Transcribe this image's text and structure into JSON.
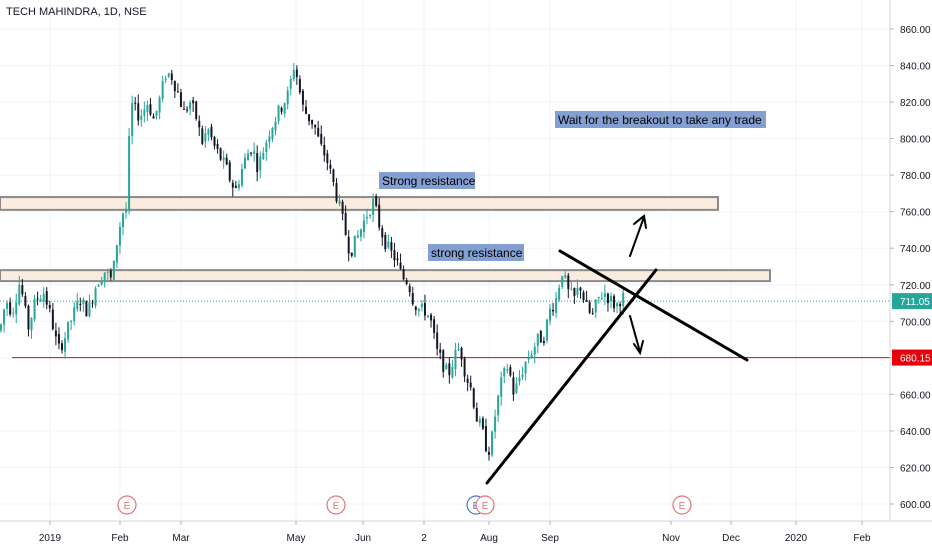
{
  "chart_data": {
    "type": "candlestick",
    "title": "TECH MAHINDRA, 1D, NSE",
    "ylim": [
      585,
      870
    ],
    "y_ticks": [
      600,
      620,
      640,
      660,
      680,
      700,
      720,
      740,
      760,
      780,
      800,
      820,
      840,
      860
    ],
    "y_tick_labels": [
      "600.00",
      "620.00",
      "640.00",
      "660.00",
      "680.00",
      "700.00",
      "720.00",
      "740.00",
      "760.00",
      "780.00",
      "800.00",
      "820.00",
      "840.00",
      "860.00"
    ],
    "x_tick_labels": [
      "2019",
      "Feb",
      "Mar",
      "May",
      "Jun",
      "2",
      "Aug",
      "Sep",
      "Nov",
      "Dec",
      "2020",
      "Feb"
    ],
    "last_price": "711.05",
    "support_level": "680.15",
    "annotations": {
      "note": "Wait for the breakout to take any trade",
      "resistance_upper": "Strong resistance",
      "resistance_lower": "strong resistance"
    },
    "earnings_marker_label": "E",
    "price_path": [
      [
        0,
        695
      ],
      [
        6,
        712
      ],
      [
        12,
        705
      ],
      [
        20,
        722
      ],
      [
        28,
        696
      ],
      [
        36,
        712
      ],
      [
        44,
        716
      ],
      [
        52,
        700
      ],
      [
        58,
        684
      ],
      [
        64,
        690
      ],
      [
        72,
        702
      ],
      [
        80,
        712
      ],
      [
        88,
        705
      ],
      [
        96,
        720
      ],
      [
        104,
        728
      ],
      [
        112,
        722
      ],
      [
        118,
        748
      ],
      [
        124,
        762
      ],
      [
        127,
        760
      ],
      [
        128,
        790
      ],
      [
        132,
        818
      ],
      [
        140,
        812
      ],
      [
        148,
        820
      ],
      [
        154,
        810
      ],
      [
        160,
        822
      ],
      [
        166,
        836
      ],
      [
        172,
        834
      ],
      [
        178,
        825
      ],
      [
        184,
        814
      ],
      [
        190,
        820
      ],
      [
        196,
        812
      ],
      [
        202,
        798
      ],
      [
        208,
        805
      ],
      [
        214,
        796
      ],
      [
        220,
        790
      ],
      [
        226,
        784
      ],
      [
        232,
        775
      ],
      [
        236,
        772
      ],
      [
        240,
        780
      ],
      [
        246,
        790
      ],
      [
        252,
        796
      ],
      [
        258,
        784
      ],
      [
        264,
        795
      ],
      [
        270,
        805
      ],
      [
        276,
        812
      ],
      [
        282,
        818
      ],
      [
        288,
        824
      ],
      [
        294,
        840
      ],
      [
        298,
        832
      ],
      [
        302,
        818
      ],
      [
        308,
        812
      ],
      [
        314,
        808
      ],
      [
        320,
        796
      ],
      [
        326,
        790
      ],
      [
        332,
        778
      ],
      [
        338,
        766
      ],
      [
        344,
        752
      ],
      [
        350,
        738
      ],
      [
        356,
        744
      ],
      [
        362,
        752
      ],
      [
        368,
        760
      ],
      [
        374,
        766
      ],
      [
        378,
        755
      ],
      [
        384,
        745
      ],
      [
        390,
        738
      ],
      [
        396,
        734
      ],
      [
        402,
        724
      ],
      [
        408,
        722
      ],
      [
        414,
        710
      ],
      [
        420,
        706
      ],
      [
        426,
        706
      ],
      [
        432,
        698
      ],
      [
        436,
        684
      ],
      [
        442,
        678
      ],
      [
        448,
        670
      ],
      [
        454,
        680
      ],
      [
        460,
        686
      ],
      [
        466,
        670
      ],
      [
        472,
        662
      ],
      [
        476,
        648
      ],
      [
        482,
        640
      ],
      [
        488,
        628
      ],
      [
        492,
        636
      ],
      [
        496,
        652
      ],
      [
        502,
        668
      ],
      [
        508,
        676
      ],
      [
        514,
        660
      ],
      [
        520,
        670
      ],
      [
        526,
        678
      ],
      [
        532,
        684
      ],
      [
        538,
        690
      ],
      [
        544,
        692
      ],
      [
        550,
        706
      ],
      [
        556,
        712
      ],
      [
        562,
        728
      ],
      [
        568,
        716
      ],
      [
        574,
        712
      ],
      [
        580,
        720
      ],
      [
        586,
        708
      ],
      [
        592,
        702
      ],
      [
        598,
        712
      ],
      [
        604,
        716
      ],
      [
        610,
        712
      ],
      [
        616,
        708
      ],
      [
        622,
        714
      ],
      [
        626,
        711
      ]
    ]
  }
}
